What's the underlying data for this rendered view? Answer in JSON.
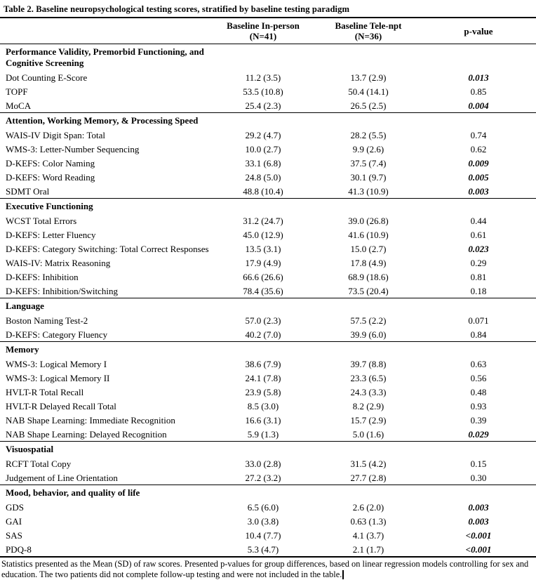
{
  "table": {
    "title": "Table 2. Baseline neuropsychological testing scores, stratified by baseline testing paradigm",
    "columns": [
      {
        "label": ""
      },
      {
        "label": "Baseline In-person",
        "sub": "(N=41)"
      },
      {
        "label": "Baseline Tele-npt",
        "sub": "(N=36)"
      },
      {
        "label": "p-value"
      }
    ],
    "sections": [
      {
        "header": "Performance Validity, Premorbid Functioning, and Cognitive Screening",
        "rows": [
          {
            "label": "Dot Counting E-Score",
            "in_person": "11.2 (3.5)",
            "tele_npt": "13.7 (2.9)",
            "p": "0.013",
            "significant": true
          },
          {
            "label": "TOPF",
            "in_person": "53.5 (10.8)",
            "tele_npt": "50.4 (14.1)",
            "p": "0.85",
            "significant": false
          },
          {
            "label": "MoCA",
            "in_person": "25.4 (2.3)",
            "tele_npt": "26.5 (2.5)",
            "p": "0.004",
            "significant": true
          }
        ]
      },
      {
        "header": "Attention, Working Memory, & Processing Speed",
        "rows": [
          {
            "label": "WAIS-IV Digit Span: Total",
            "in_person": "29.2 (4.7)",
            "tele_npt": "28.2 (5.5)",
            "p": "0.74",
            "significant": false
          },
          {
            "label": "WMS-3: Letter-Number Sequencing",
            "in_person": "10.0 (2.7)",
            "tele_npt": "9.9 (2.6)",
            "p": "0.62",
            "significant": false
          },
          {
            "label": "D-KEFS: Color Naming",
            "in_person": "33.1 (6.8)",
            "tele_npt": "37.5 (7.4)",
            "p": "0.009",
            "significant": true
          },
          {
            "label": "D-KEFS: Word Reading",
            "in_person": "24.8 (5.0)",
            "tele_npt": "30.1 (9.7)",
            "p": "0.005",
            "significant": true
          },
          {
            "label": "SDMT Oral",
            "in_person": "48.8 (10.4)",
            "tele_npt": "41.3 (10.9)",
            "p": "0.003",
            "significant": true
          }
        ]
      },
      {
        "header": "Executive Functioning",
        "rows": [
          {
            "label": "WCST Total Errors",
            "in_person": "31.2 (24.7)",
            "tele_npt": "39.0 (26.8)",
            "p": "0.44",
            "significant": false
          },
          {
            "label": "D-KEFS: Letter Fluency",
            "in_person": "45.0 (12.9)",
            "tele_npt": "41.6 (10.9)",
            "p": "0.61",
            "significant": false
          },
          {
            "label": "D-KEFS: Category Switching: Total Correct Responses",
            "in_person": "13.5 (3.1)",
            "tele_npt": "15.0 (2.7)",
            "p": "0.023",
            "significant": true
          },
          {
            "label": "WAIS-IV: Matrix Reasoning",
            "in_person": "17.9 (4.9)",
            "tele_npt": "17.8 (4.9)",
            "p": "0.29",
            "significant": false
          },
          {
            "label": "D-KEFS: Inhibition",
            "in_person": "66.6 (26.6)",
            "tele_npt": "68.9 (18.6)",
            "p": "0.81",
            "significant": false
          },
          {
            "label": "D-KEFS: Inhibition/Switching",
            "in_person": "78.4 (35.6)",
            "tele_npt": "73.5 (20.4)",
            "p": "0.18",
            "significant": false
          }
        ]
      },
      {
        "header": "Language",
        "rows": [
          {
            "label": "Boston Naming Test-2",
            "in_person": "57.0 (2.3)",
            "tele_npt": "57.5 (2.2)",
            "p": "0.071",
            "significant": false
          },
          {
            "label": "D-KEFS: Category Fluency",
            "in_person": "40.2 (7.0)",
            "tele_npt": "39.9 (6.0)",
            "p": "0.84",
            "significant": false
          }
        ]
      },
      {
        "header": "Memory",
        "rows": [
          {
            "label": "WMS-3: Logical Memory I",
            "in_person": "38.6 (7.9)",
            "tele_npt": "39.7 (8.8)",
            "p": "0.63",
            "significant": false
          },
          {
            "label": "WMS-3: Logical Memory II",
            "in_person": "24.1 (7.8)",
            "tele_npt": "23.3 (6.5)",
            "p": "0.56",
            "significant": false
          },
          {
            "label": "HVLT-R Total Recall",
            "in_person": "23.9 (5.8)",
            "tele_npt": "24.3 (3.3)",
            "p": "0.48",
            "significant": false
          },
          {
            "label": "HVLT-R Delayed Recall Total",
            "in_person": "8.5 (3.0)",
            "tele_npt": "8.2 (2.9)",
            "p": "0.93",
            "significant": false
          },
          {
            "label": "NAB Shape Learning: Immediate Recognition",
            "in_person": "16.6 (3.1)",
            "tele_npt": "15.7 (2.9)",
            "p": "0.39",
            "significant": false
          },
          {
            "label": "NAB Shape Learning: Delayed Recognition",
            "in_person": "5.9 (1.3)",
            "tele_npt": "5.0 (1.6)",
            "p": "0.029",
            "significant": true
          }
        ]
      },
      {
        "header": "Visuospatial",
        "rows": [
          {
            "label": "RCFT Total Copy",
            "in_person": "33.0 (2.8)",
            "tele_npt": "31.5 (4.2)",
            "p": "0.15",
            "significant": false
          },
          {
            "label": "Judgement of Line Orientation",
            "in_person": "27.2 (3.2)",
            "tele_npt": "27.7 (2.8)",
            "p": "0.30",
            "significant": false
          }
        ]
      },
      {
        "header": "Mood, behavior, and quality of life",
        "rows": [
          {
            "label": "GDS",
            "in_person": "6.5 (6.0)",
            "tele_npt": "2.6 (2.0)",
            "p": "0.003",
            "significant": true
          },
          {
            "label": "GAI",
            "in_person": "3.0 (3.8)",
            "tele_npt": "0.63 (1.3)",
            "p": "0.003",
            "significant": true
          },
          {
            "label": "SAS",
            "in_person": "10.4 (7.7)",
            "tele_npt": "4.1 (3.7)",
            "p": "<0.001",
            "significant": true
          },
          {
            "label": "PDQ-8",
            "in_person": "5.3 (4.7)",
            "tele_npt": "2.1 (1.7)",
            "p": "<0.001",
            "significant": true
          }
        ]
      }
    ],
    "footnote": "Statistics presented as the Mean (SD) of raw scores. Presented p-values for group differences, based on linear regression models controlling for sex and education. The two patients did not complete follow-up testing and were not included in the table."
  }
}
